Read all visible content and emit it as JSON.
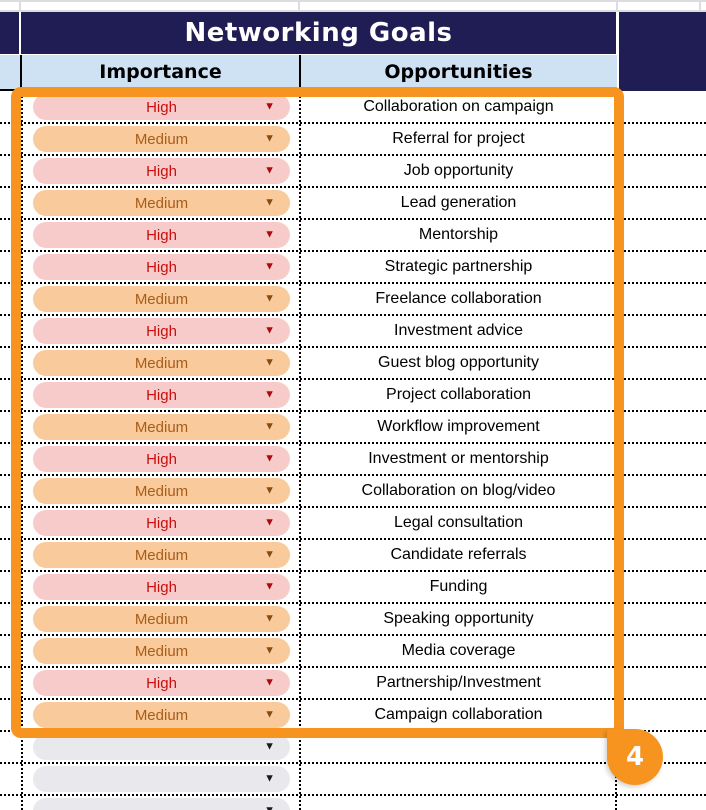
{
  "title": "Networking Goals",
  "columns": {
    "importance": "Importance",
    "opportunities": "Opportunities"
  },
  "dropdown_icon": "▼",
  "rows": [
    {
      "importance": "High",
      "opportunity": "Collaboration on campaign"
    },
    {
      "importance": "Medium",
      "opportunity": "Referral for project"
    },
    {
      "importance": "High",
      "opportunity": "Job opportunity"
    },
    {
      "importance": "Medium",
      "opportunity": "Lead generation"
    },
    {
      "importance": "High",
      "opportunity": "Mentorship"
    },
    {
      "importance": "High",
      "opportunity": "Strategic partnership"
    },
    {
      "importance": "Medium",
      "opportunity": "Freelance collaboration"
    },
    {
      "importance": "High",
      "opportunity": "Investment advice"
    },
    {
      "importance": "Medium",
      "opportunity": "Guest blog opportunity"
    },
    {
      "importance": "High",
      "opportunity": "Project collaboration"
    },
    {
      "importance": "Medium",
      "opportunity": "Workflow improvement"
    },
    {
      "importance": "High",
      "opportunity": "Investment or mentorship"
    },
    {
      "importance": "Medium",
      "opportunity": "Collaboration on blog/video"
    },
    {
      "importance": "High",
      "opportunity": "Legal consultation"
    },
    {
      "importance": "Medium",
      "opportunity": "Candidate referrals"
    },
    {
      "importance": "High",
      "opportunity": "Funding"
    },
    {
      "importance": "Medium",
      "opportunity": "Speaking opportunity"
    },
    {
      "importance": "Medium",
      "opportunity": "Media coverage"
    },
    {
      "importance": "High",
      "opportunity": "Partnership/Investment"
    },
    {
      "importance": "Medium",
      "opportunity": "Campaign collaboration"
    }
  ],
  "empty_rows": 3,
  "selection_badge": {
    "label": "4"
  },
  "colors": {
    "banner_bg": "#201d54",
    "banner_text": "#ffffff",
    "header_bg": "#cfe2f3",
    "header_text": "#000000",
    "high_bg": "#f8cbcb",
    "high_text": "#cc0e0e",
    "high_arrow": "#a80b0b",
    "medium_bg": "#f9cb9c",
    "medium_text": "#a85c18",
    "medium_arrow": "#8a4a0e",
    "empty_pill_bg": "#e9e9ed",
    "empty_arrow": "#1a1a1a",
    "selection_border": "#f6941f",
    "grid_dotted": "#000000",
    "gridline_light": "#dadce0"
  }
}
